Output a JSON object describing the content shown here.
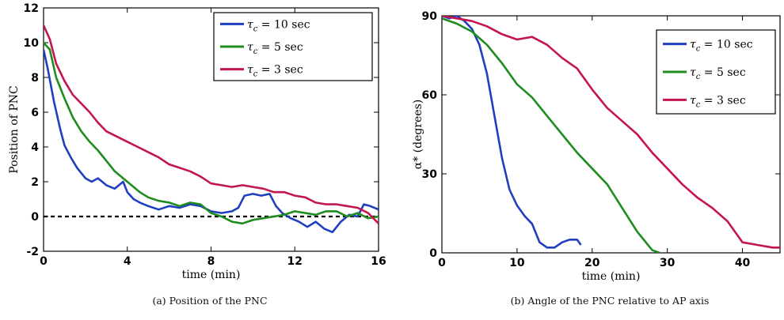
{
  "chart_data": [
    {
      "type": "line",
      "caption": "(a) Position of the PNC",
      "xlabel": "time (min)",
      "ylabel": "Position of PNC",
      "xlim": [
        0,
        16
      ],
      "ylim": [
        -2,
        12
      ],
      "xticks": [
        0,
        4,
        8,
        12,
        16
      ],
      "yticks": [
        -2,
        0,
        2,
        4,
        6,
        8,
        10,
        12
      ],
      "grid": false,
      "legend_position": "top-right",
      "reference_line": {
        "y": 0,
        "style": "dashed",
        "color": "#000000"
      },
      "series": [
        {
          "name": "τc = 10 sec",
          "color": "#1f3fbf",
          "x": [
            0,
            0.2,
            0.5,
            0.8,
            1.0,
            1.3,
            1.6,
            2.0,
            2.3,
            2.6,
            3.0,
            3.4,
            3.8,
            4.0,
            4.3,
            4.6,
            5.0,
            5.5,
            6.0,
            6.5,
            7.0,
            7.5,
            8.0,
            8.5,
            9.0,
            9.3,
            9.6,
            10.0,
            10.4,
            10.8,
            11.1,
            11.4,
            11.8,
            12.2,
            12.6,
            13.0,
            13.4,
            13.8,
            14.2,
            14.6,
            15.0,
            15.3,
            15.6,
            16.0
          ],
          "y": [
            9.6,
            8.5,
            6.6,
            5.0,
            4.1,
            3.4,
            2.8,
            2.2,
            2.0,
            2.2,
            1.8,
            1.6,
            2.0,
            1.4,
            1.0,
            0.8,
            0.6,
            0.4,
            0.6,
            0.5,
            0.7,
            0.6,
            0.3,
            0.2,
            0.3,
            0.5,
            1.2,
            1.3,
            1.2,
            1.3,
            0.6,
            0.2,
            -0.1,
            -0.3,
            -0.6,
            -0.3,
            -0.7,
            -0.9,
            -0.3,
            0.1,
            0.0,
            0.7,
            0.6,
            0.4
          ]
        },
        {
          "name": "τc = 5 sec",
          "color": "#1e8c1e",
          "x": [
            0,
            0.3,
            0.6,
            1.0,
            1.4,
            1.8,
            2.2,
            2.6,
            3.0,
            3.4,
            3.8,
            4.2,
            4.6,
            5.0,
            5.5,
            6.0,
            6.5,
            7.0,
            7.5,
            8.0,
            8.5,
            9.0,
            9.5,
            10.0,
            10.5,
            11.0,
            11.5,
            12.0,
            12.5,
            13.0,
            13.5,
            14.0,
            14.5,
            15.0,
            15.5,
            16.0
          ],
          "y": [
            10.0,
            9.6,
            8.0,
            6.8,
            5.7,
            4.9,
            4.3,
            3.8,
            3.2,
            2.6,
            2.2,
            1.8,
            1.4,
            1.1,
            0.9,
            0.8,
            0.6,
            0.8,
            0.7,
            0.2,
            0.0,
            -0.3,
            -0.4,
            -0.2,
            -0.1,
            0.0,
            0.1,
            0.3,
            0.2,
            0.1,
            0.3,
            0.3,
            0.0,
            0.2,
            -0.1,
            0.0
          ]
        },
        {
          "name": "τc = 3 sec",
          "color": "#c4154f",
          "x": [
            0,
            0.3,
            0.6,
            1.0,
            1.4,
            1.8,
            2.2,
            2.6,
            3.0,
            3.5,
            4.0,
            4.5,
            5.0,
            5.5,
            6.0,
            6.5,
            7.0,
            7.5,
            8.0,
            8.5,
            9.0,
            9.5,
            10.0,
            10.5,
            11.0,
            11.5,
            12.0,
            12.5,
            13.0,
            13.5,
            14.0,
            14.5,
            15.0,
            15.5,
            16.0
          ],
          "y": [
            11.0,
            10.2,
            8.8,
            7.8,
            7.0,
            6.5,
            6.0,
            5.4,
            4.9,
            4.6,
            4.3,
            4.0,
            3.7,
            3.4,
            3.0,
            2.8,
            2.6,
            2.3,
            1.9,
            1.8,
            1.7,
            1.8,
            1.7,
            1.6,
            1.4,
            1.4,
            1.2,
            1.1,
            0.8,
            0.7,
            0.7,
            0.6,
            0.5,
            0.2,
            -0.4
          ]
        }
      ]
    },
    {
      "type": "line",
      "caption": "(b) Angle of the PNC relative to AP axis",
      "xlabel": "time (min)",
      "ylabel": "α* (degrees)",
      "xlim": [
        0,
        45
      ],
      "ylim": [
        0,
        90
      ],
      "xticks": [
        0,
        10,
        20,
        30,
        40
      ],
      "yticks": [
        0,
        30,
        60,
        90
      ],
      "grid": false,
      "legend_position": "top-right",
      "series": [
        {
          "name": "τc = 10 sec",
          "color": "#1f3fbf",
          "x": [
            0,
            1,
            2,
            3,
            4,
            5,
            6,
            7,
            8,
            9,
            10,
            11,
            12,
            13,
            14,
            15,
            16,
            17,
            18,
            18.5
          ],
          "y": [
            90,
            89,
            90,
            88,
            85,
            79,
            68,
            52,
            36,
            24,
            18,
            14,
            11,
            4,
            2,
            2,
            4,
            5,
            5,
            3
          ]
        },
        {
          "name": "τc = 5 sec",
          "color": "#1e8c1e",
          "x": [
            0,
            2,
            4,
            6,
            8,
            10,
            12,
            14,
            16,
            18,
            20,
            22,
            24,
            26,
            28,
            29
          ],
          "y": [
            89,
            87,
            84,
            79,
            72,
            64,
            59,
            52,
            45,
            38,
            32,
            26,
            17,
            8,
            1,
            0
          ]
        },
        {
          "name": "τc = 3 sec",
          "color": "#c4154f",
          "x": [
            0,
            2,
            4,
            6,
            8,
            10,
            12,
            14,
            16,
            18,
            20,
            22,
            24,
            26,
            28,
            30,
            32,
            34,
            36,
            38,
            40,
            42,
            44,
            45
          ],
          "y": [
            90,
            89,
            88,
            86,
            83,
            81,
            82,
            79,
            74,
            70,
            62,
            55,
            50,
            45,
            38,
            32,
            26,
            21,
            17,
            12,
            4,
            3,
            2,
            2
          ]
        }
      ]
    }
  ]
}
